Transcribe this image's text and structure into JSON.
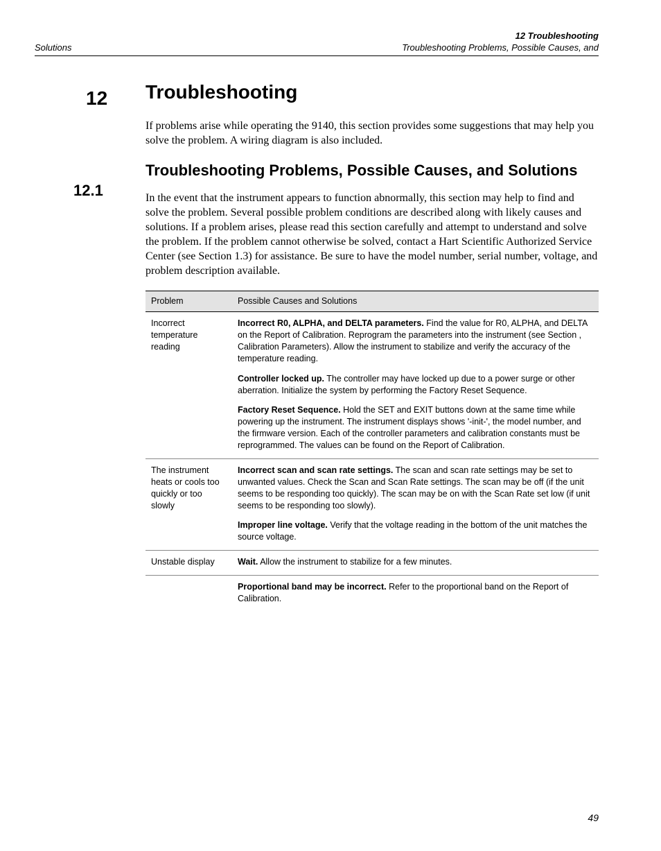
{
  "running_head": {
    "left": "Solutions",
    "right_bold": "12 Troubleshooting",
    "right_line2": "Troubleshooting Problems, Possible Causes, and"
  },
  "section": {
    "num": "12",
    "title": "Troubleshooting",
    "intro": "If problems arise while operating the 9140, this section provides some suggestions that may help you solve the problem. A wiring diagram is also included."
  },
  "subsection": {
    "num": "12.1",
    "title": "Troubleshooting Problems, Possible Causes, and Solutions",
    "intro": "In the event that the instrument appears to function abnormally, this section may help to find and solve the problem. Several possible problem conditions are described along with likely causes and solutions. If a problem arises, please read this section carefully and attempt to understand and solve the problem. If the problem cannot otherwise be solved, contact a Hart Scientific Authorized Service Center (see Section  1.3) for assistance. Be sure to have the model number, serial number, voltage, and problem description  available."
  },
  "table": {
    "head_problem": "Problem",
    "head_causes": "Possible Causes and Solutions",
    "rows": [
      {
        "problem": "Incorrect temperature reading",
        "paras": [
          {
            "bold": "Incorrect R0, ALPHA, and DELTA parameters.",
            "text": " Find the value for R0, ALPHA, and DELTA on the Report of Calibration. Reprogram the parameters into the instrument (see Section , Calibration Parameters). Allow the instrument to stabilize and verify the accuracy of the temperature reading."
          },
          {
            "bold": "Controller locked up.",
            "text": " The controller may have locked up due to a power surge or other aberration. Initialize the system by performing the Factory Reset Sequence."
          },
          {
            "bold": "Factory Reset Sequence.",
            "text": " Hold the SET and EXIT buttons down at the same time while powering up the instrument. The instrument displays shows '-init-', the model number, and the firmware version. Each of the controller parameters and calibration constants must be reprogrammed. The values can be found on the Report of Calibration."
          }
        ]
      },
      {
        "problem": "The instrument heats or cools too quickly or too slowly",
        "paras": [
          {
            "bold": "Incorrect scan and scan rate settings.",
            "text": " The scan and scan rate settings may be set to unwanted values. Check the Scan and Scan Rate settings. The scan may be off (if the unit seems to be responding too quickly). The scan may be on with the Scan Rate set low (if unit seems to be responding too slowly)."
          },
          {
            "bold": "Improper line voltage.",
            "text": " Verify that the voltage reading in the bottom of the unit matches the source voltage."
          }
        ]
      },
      {
        "problem": "Unstable display",
        "paras": [
          {
            "bold": "Wait.",
            "text": " Allow the instrument to stabilize for a few minutes."
          },
          {
            "bold": "Proportional band may be incorrect.",
            "text": " Refer to the proportional band on the Report of Calibration."
          }
        ],
        "split_after_first": true
      }
    ]
  },
  "page_number": "49"
}
